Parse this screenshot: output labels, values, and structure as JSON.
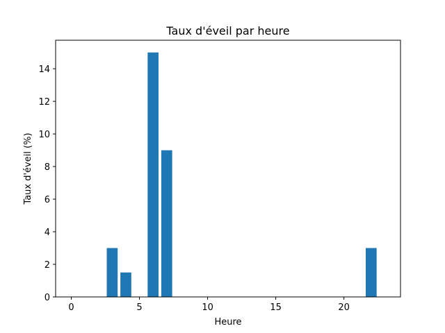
{
  "chart_data": {
    "type": "bar",
    "title": "Taux d'éveil par heure",
    "xlabel": "Heure",
    "ylabel": "Taux d'éveil (%)",
    "x": [
      3,
      4,
      6,
      7,
      22
    ],
    "values": [
      3.0,
      1.5,
      15.0,
      9.0,
      3.0
    ],
    "xlim": [
      -1.15,
      24.15
    ],
    "ylim": [
      0,
      15.75
    ],
    "xticks": [
      0,
      5,
      10,
      15,
      20
    ],
    "yticks": [
      0,
      2,
      4,
      6,
      8,
      10,
      12,
      14
    ],
    "bar_width": 0.8,
    "bar_color": "#1f77b4",
    "grid": false
  }
}
